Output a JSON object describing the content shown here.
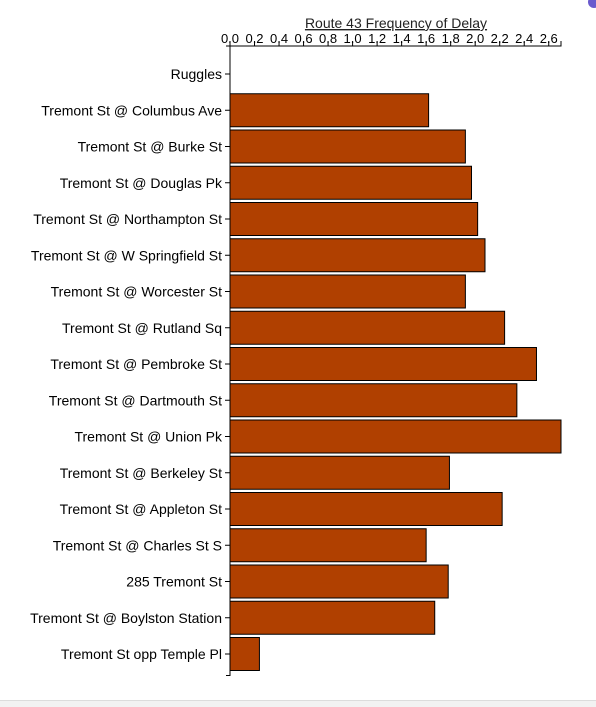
{
  "chart_data": {
    "type": "bar",
    "orientation": "horizontal",
    "title": "Route 43 Frequency of Delay",
    "xlabel": "",
    "ylabel": "",
    "xlim": [
      0,
      2.7
    ],
    "xticks": [
      "0.0",
      "0.2",
      "0.4",
      "0.6",
      "0.8",
      "1.0",
      "1.2",
      "1.4",
      "1.6",
      "1.8",
      "2.0",
      "2.2",
      "2.4",
      "2.6"
    ],
    "categories": [
      "Ruggles",
      "Tremont St @ Columbus Ave",
      "Tremont St @ Burke St",
      "Tremont St @ Douglas Pk",
      "Tremont St @ Northampton St",
      "Tremont St @ W Springfield St",
      "Tremont St @ Worcester St",
      "Tremont St @ Rutland Sq",
      "Tremont St @ Pembroke St",
      "Tremont St @ Dartmouth St",
      "Tremont St @ Union Pk",
      "Tremont St @ Berkeley St",
      "Tremont St @ Appleton St",
      "Tremont St @ Charles St S",
      "285 Tremont St",
      "Tremont St @ Boylston Station",
      "Tremont St opp Temple Pl"
    ],
    "values": [
      0,
      1.62,
      1.92,
      1.97,
      2.02,
      2.08,
      1.92,
      2.24,
      2.5,
      2.34,
      2.7,
      1.79,
      2.22,
      1.6,
      1.78,
      1.67,
      0.24
    ],
    "bar_color": "#b04000",
    "grid": false,
    "legend": "none"
  }
}
